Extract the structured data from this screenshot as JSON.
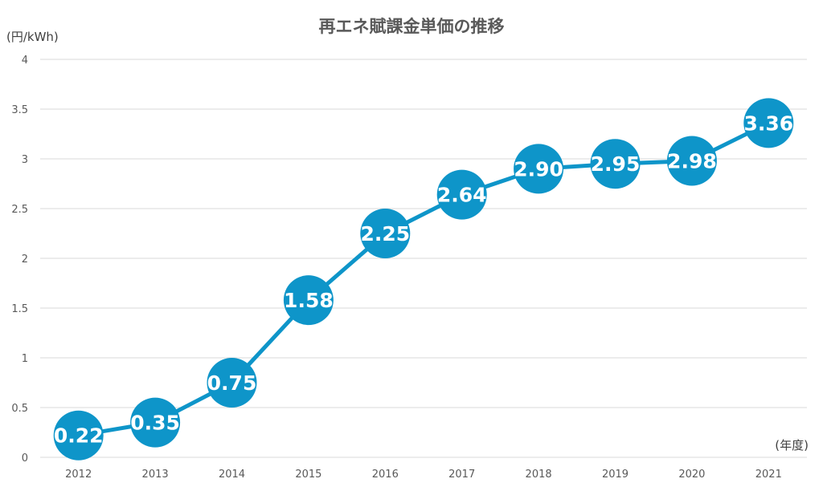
{
  "chart_data": {
    "type": "line",
    "title": "再エネ賦課金単価の推移",
    "ylabel": "(円/kWh)",
    "xlabel": "(年度)",
    "categories": [
      "2012",
      "2013",
      "2014",
      "2015",
      "2016",
      "2017",
      "2018",
      "2019",
      "2020",
      "2021"
    ],
    "series": [
      {
        "values": [
          0.22,
          0.35,
          0.75,
          1.58,
          2.25,
          2.64,
          2.9,
          2.95,
          2.98,
          3.36
        ],
        "labels": [
          "0.22",
          "0.35",
          "0.75",
          "1.58",
          "2.25",
          "2.64",
          "2.90",
          "2.95",
          "2.98",
          "3.36"
        ]
      }
    ],
    "ylim": [
      0,
      4
    ],
    "yticks": [
      "0",
      "0.5",
      "1",
      "1.5",
      "2",
      "2.5",
      "3",
      "3.5",
      "4"
    ],
    "grid": true,
    "legend": "none",
    "colors": {
      "series": "#0e95c9",
      "grid": "#d9d9d9",
      "text": "#595959"
    }
  }
}
